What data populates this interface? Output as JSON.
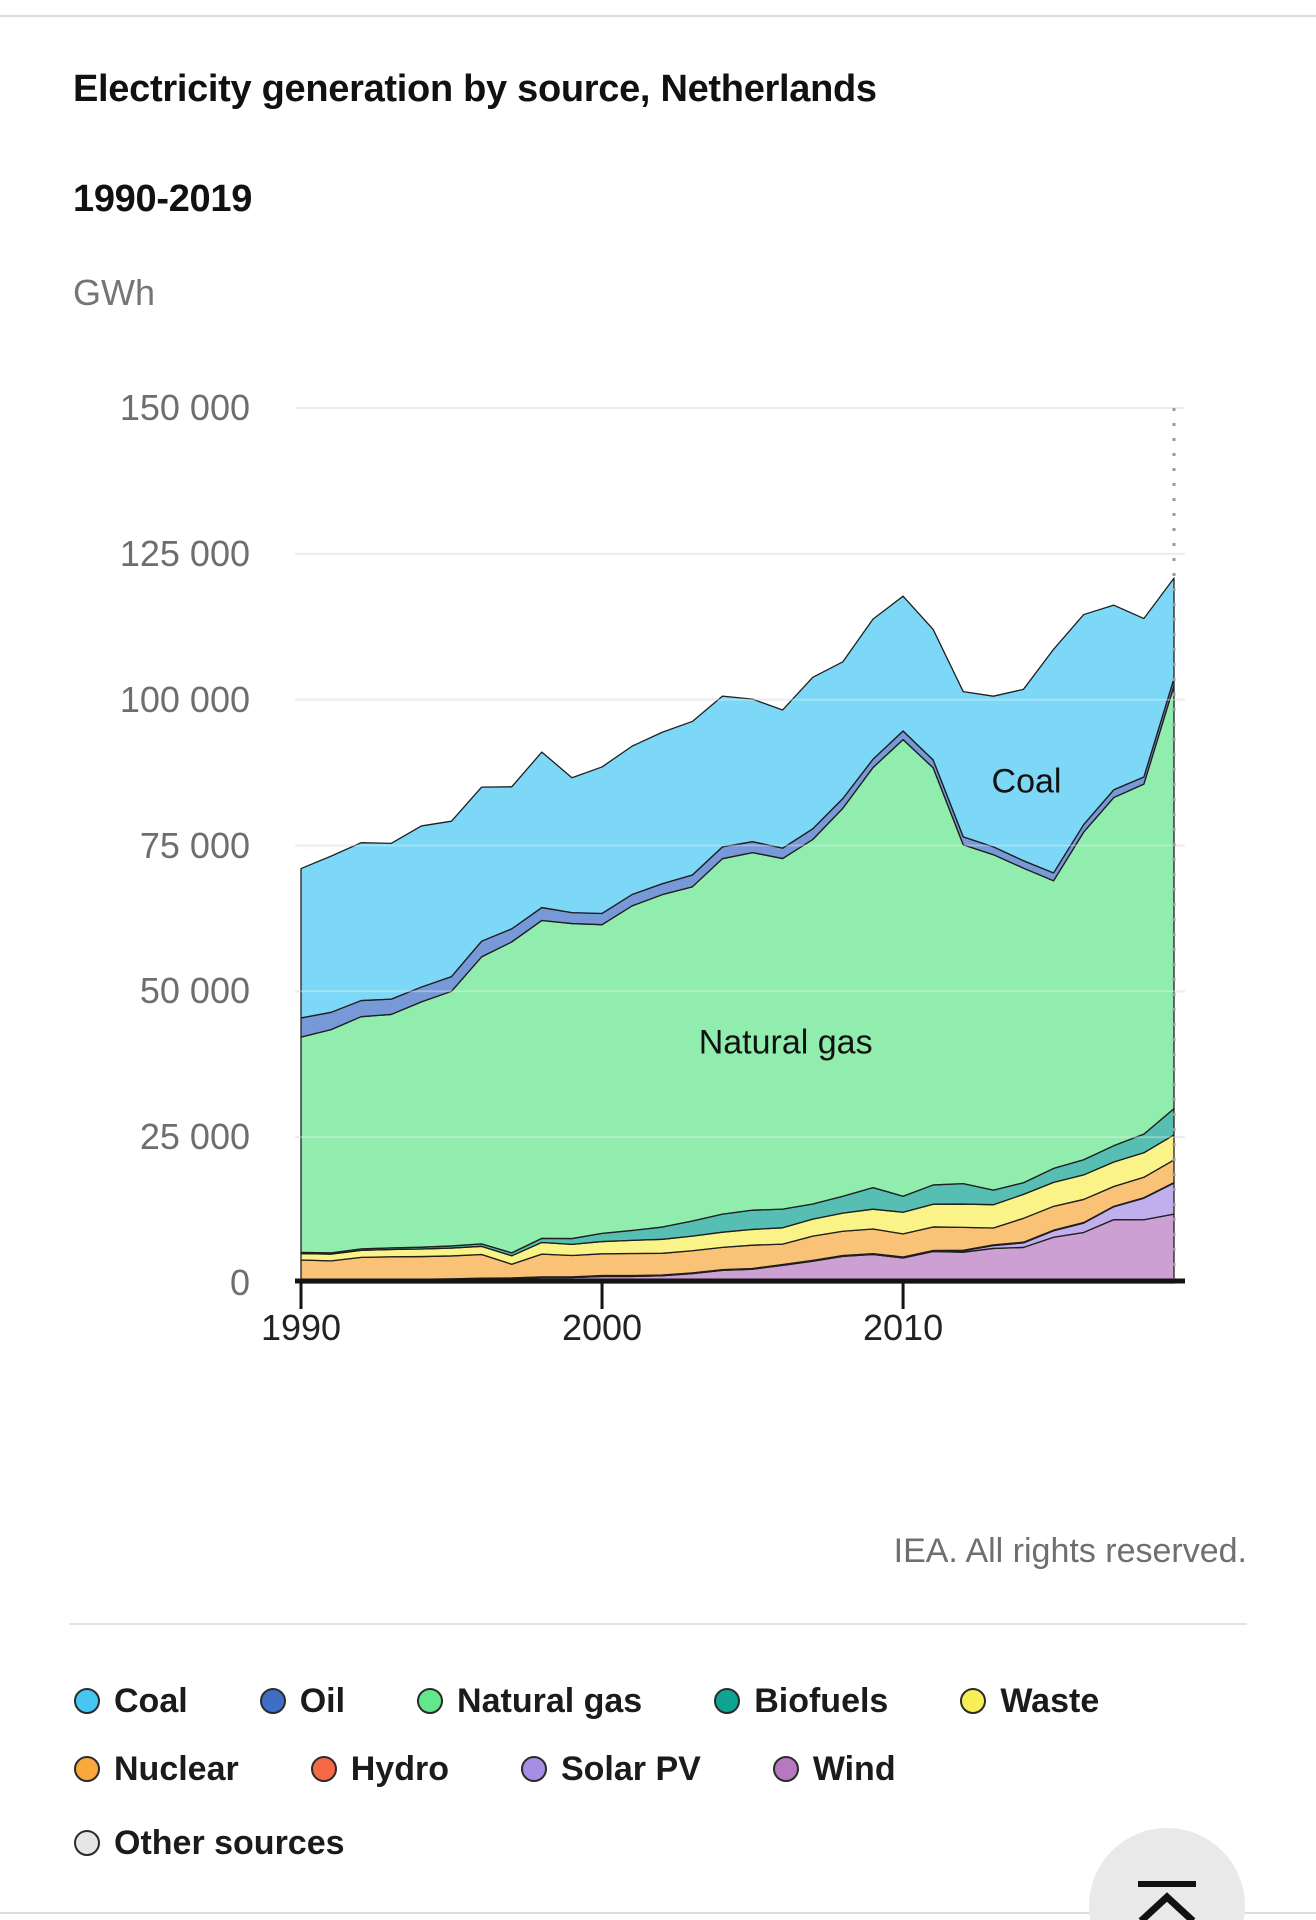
{
  "title": {
    "line1": "Electricity generation by source, Netherlands",
    "line2": "1990-2019"
  },
  "unit_label": "GWh",
  "attribution": "IEA. All rights reserved.",
  "chart_data": {
    "type": "area",
    "stacked": true,
    "title": "Electricity generation by source, Netherlands 1990-2019",
    "ylabel": "GWh",
    "xlabel": "",
    "grid": true,
    "ylim": [
      0,
      150000
    ],
    "y_ticks": [
      "0",
      "25 000",
      "50 000",
      "75 000",
      "100 000",
      "125 000",
      "150 000"
    ],
    "y_tick_values": [
      0,
      25000,
      50000,
      75000,
      100000,
      125000,
      150000
    ],
    "x_ticks": [
      1990,
      2000,
      2010
    ],
    "years": [
      1990,
      1991,
      1992,
      1993,
      1994,
      1995,
      1996,
      1997,
      1998,
      1999,
      2000,
      2001,
      2002,
      2003,
      2004,
      2005,
      2006,
      2007,
      2008,
      2009,
      2010,
      2011,
      2012,
      2013,
      2014,
      2015,
      2016,
      2017,
      2018,
      2019
    ],
    "stack_order": "bottom to top",
    "series": [
      {
        "name": "Other sources",
        "color": "#E6E6E6",
        "values": [
          300,
          300,
          300,
          300,
          300,
          300,
          300,
          300,
          300,
          300,
          300,
          300,
          300,
          300,
          300,
          300,
          300,
          300,
          300,
          300,
          300,
          300,
          300,
          300,
          300,
          300,
          300,
          300,
          300,
          300
        ]
      },
      {
        "name": "Wind",
        "color": "#B678BF",
        "values": [
          56,
          87,
          136,
          175,
          237,
          316,
          441,
          475,
          640,
          645,
          829,
          825,
          946,
          1320,
          1864,
          2067,
          2734,
          3438,
          4260,
          4581,
          3993,
          5100,
          4982,
          5627,
          5797,
          7550,
          8364,
          10569,
          10549,
          11508
        ]
      },
      {
        "name": "Solar PV",
        "color": "#A78DE6",
        "values": [
          0,
          0,
          0,
          0,
          0,
          0,
          0,
          1,
          3,
          4,
          8,
          13,
          17,
          31,
          33,
          34,
          35,
          38,
          43,
          53,
          56,
          104,
          226,
          488,
          785,
          1109,
          1602,
          2204,
          3693,
          5336
        ]
      },
      {
        "name": "Hydro",
        "color": "#F56946",
        "values": [
          89,
          79,
          119,
          91,
          100,
          88,
          80,
          91,
          111,
          89,
          141,
          142,
          110,
          72,
          94,
          88,
          106,
          107,
          102,
          98,
          105,
          57,
          104,
          114,
          112,
          95,
          100,
          61,
          72,
          74
        ]
      },
      {
        "name": "Nuclear",
        "color": "#F8A83D",
        "values": [
          3502,
          3331,
          3841,
          3924,
          3895,
          3937,
          4067,
          2347,
          3895,
          3681,
          3729,
          3779,
          3719,
          3810,
          3817,
          3997,
          3487,
          4160,
          4169,
          4223,
          3969,
          4048,
          3918,
          2894,
          4093,
          4089,
          3960,
          3409,
          3512,
          3870
        ]
      },
      {
        "name": "Waste",
        "color": "#F8EE55",
        "values": [
          1100,
          1150,
          1200,
          1250,
          1300,
          1350,
          1400,
          1450,
          2000,
          1900,
          2100,
          2250,
          2400,
          2500,
          2600,
          2700,
          2800,
          2900,
          3100,
          3400,
          3700,
          3900,
          4000,
          4000,
          4100,
          4100,
          4200,
          4200,
          4200,
          4300
        ]
      },
      {
        "name": "Biofuels",
        "color": "#0EA392",
        "values": [
          200,
          220,
          250,
          280,
          310,
          360,
          420,
          500,
          700,
          1000,
          1400,
          1700,
          2100,
          2600,
          3100,
          3300,
          3200,
          2600,
          2900,
          3700,
          2750,
          3300,
          3500,
          2500,
          2000,
          2400,
          2600,
          2800,
          3200,
          4500
        ]
      },
      {
        "name": "Natural gas",
        "color": "#63E68C",
        "values": [
          36906,
          38266,
          39808,
          40022,
          42046,
          43652,
          49200,
          53300,
          54500,
          54000,
          52915,
          55641,
          56977,
          57283,
          60933,
          61300,
          60100,
          62485,
          66503,
          71998,
          78280,
          71504,
          58082,
          57500,
          53921,
          49302,
          56170,
          59679,
          60000,
          72498
        ]
      },
      {
        "name": "Oil",
        "color": "#3E6EC6",
        "values": [
          3285,
          2969,
          2765,
          2620,
          2545,
          2525,
          2689,
          2248,
          2211,
          1874,
          1926,
          1949,
          1869,
          2027,
          2022,
          1867,
          1783,
          1838,
          1683,
          1427,
          1480,
          1345,
          1365,
          1350,
          1276,
          1349,
          1294,
          1330,
          1231,
          1221
        ]
      },
      {
        "name": "Coal",
        "color": "#45C7F2",
        "values": [
          25606,
          26773,
          27059,
          26708,
          27621,
          26638,
          26414,
          24352,
          26653,
          23128,
          25122,
          25435,
          25975,
          26323,
          25844,
          24438,
          23685,
          25958,
          23433,
          24027,
          23104,
          22371,
          24895,
          25822,
          29389,
          38341,
          35999,
          31648,
          27160,
          17233
        ]
      }
    ],
    "area_labels": [
      {
        "text": "Coal",
        "x_year": 2014.1,
        "value": 85900
      },
      {
        "text": "Natural gas",
        "x_year": 2006.1,
        "value": 41100
      }
    ],
    "legend_position": "bottom",
    "end_marker_year": 2019
  },
  "legend": {
    "rows": [
      [
        {
          "label": "Coal",
          "color": "#45C7F2"
        },
        {
          "label": "Oil",
          "color": "#3E6EC6"
        },
        {
          "label": "Natural gas",
          "color": "#63E68C"
        },
        {
          "label": "Biofuels",
          "color": "#0EA392"
        },
        {
          "label": "Waste",
          "color": "#F8EE55"
        }
      ],
      [
        {
          "label": "Nuclear",
          "color": "#F8A83D"
        },
        {
          "label": "Hydro",
          "color": "#F56946"
        },
        {
          "label": "Solar PV",
          "color": "#A78DE6"
        },
        {
          "label": "Wind",
          "color": "#B678BF"
        }
      ],
      [
        {
          "label": "Other sources",
          "color": "#E6E6E6"
        }
      ]
    ]
  }
}
